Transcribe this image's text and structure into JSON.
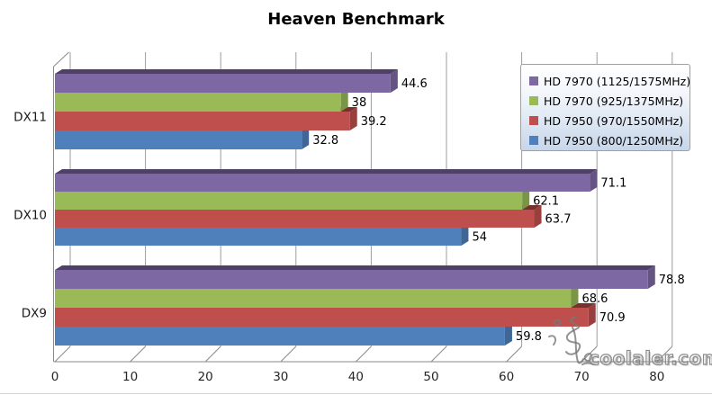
{
  "title": "Heaven Benchmark",
  "chart_data": {
    "type": "bar",
    "orientation": "horizontal",
    "style": "3d",
    "title": "Heaven Benchmark",
    "categories": [
      "DX11",
      "DX10",
      "DX9"
    ],
    "series": [
      {
        "name": "HD 7970 (1125/1575MHz)",
        "color": "#7E68A4",
        "values": [
          44.6,
          71.1,
          78.8
        ]
      },
      {
        "name": "HD 7970 (925/1375MHz)",
        "color": "#9ABA58",
        "values": [
          38,
          62.1,
          68.6
        ]
      },
      {
        "name": "HD 7950 (970/1550MHz)",
        "color": "#BF4F4C",
        "values": [
          39.2,
          63.7,
          70.9
        ]
      },
      {
        "name": "HD 7950 (800/1250MHz)",
        "color": "#4F80BC",
        "values": [
          32.8,
          54,
          59.8
        ]
      }
    ],
    "x_ticks": [
      0,
      10,
      20,
      30,
      40,
      50,
      60,
      70,
      80
    ],
    "xlim": [
      0,
      84
    ],
    "grid": true,
    "legend_position": "top-right",
    "value_labels": true,
    "grid_color": "#9c9c9c",
    "axis_color": "#8a8a8a",
    "label_color": "#1a1a1a"
  },
  "watermark": {
    "logo_icon": "calligraphy-signature",
    "text": "coolaler.com"
  }
}
